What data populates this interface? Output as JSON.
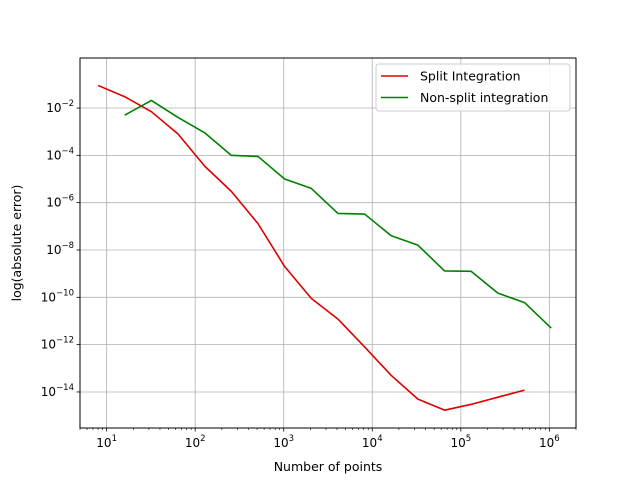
{
  "chart_data": {
    "type": "line",
    "xlabel": "Number of points",
    "ylabel": "log(absolute error)",
    "xscale": "log",
    "yscale": "log",
    "xlim": [
      5,
      2000000
    ],
    "ylim": [
      3e-16,
      1.3
    ],
    "grid": true,
    "legend_position": "top-right",
    "x_ticks": [
      {
        "value": 10,
        "base": "10",
        "exp": "1"
      },
      {
        "value": 100,
        "base": "10",
        "exp": "2"
      },
      {
        "value": 1000,
        "base": "10",
        "exp": "3"
      },
      {
        "value": 10000,
        "base": "10",
        "exp": "4"
      },
      {
        "value": 100000,
        "base": "10",
        "exp": "5"
      },
      {
        "value": 1000000,
        "base": "10",
        "exp": "6"
      }
    ],
    "y_ticks": [
      {
        "value": 1e-14,
        "base": "10",
        "exp": "−14"
      },
      {
        "value": 1e-12,
        "base": "10",
        "exp": "−12"
      },
      {
        "value": 1e-10,
        "base": "10",
        "exp": "−10"
      },
      {
        "value": 1e-08,
        "base": "10",
        "exp": "−8"
      },
      {
        "value": 1e-06,
        "base": "10",
        "exp": "−6"
      },
      {
        "value": 0.0001,
        "base": "10",
        "exp": "−4"
      },
      {
        "value": 0.01,
        "base": "10",
        "exp": "−2"
      }
    ],
    "series": [
      {
        "name": "Split Integration",
        "color": "#dd0000",
        "x": [
          8,
          16,
          32,
          64,
          128,
          256,
          512,
          1024,
          2048,
          4096,
          8192,
          16384,
          32768,
          65536,
          131072,
          262144,
          524288
        ],
        "y": [
          0.09,
          0.03,
          0.007,
          0.0008,
          3.5e-05,
          3e-06,
          1.3e-07,
          2e-09,
          9e-11,
          1.2e-11,
          8e-13,
          5e-14,
          5e-15,
          1.7e-15,
          3e-15,
          6e-15,
          1.2e-14
        ]
      },
      {
        "name": "Non-split integration",
        "color": "#008000",
        "x": [
          16,
          32,
          64,
          128,
          256,
          512,
          1024,
          2048,
          4096,
          8192,
          16384,
          32768,
          65536,
          131072,
          262144,
          524288,
          1048576
        ],
        "y": [
          0.005,
          0.021,
          0.004,
          0.0009,
          0.0001,
          9e-05,
          1e-05,
          4e-06,
          3.5e-07,
          3.3e-07,
          4e-08,
          1.6e-08,
          1.3e-09,
          1.25e-09,
          1.5e-10,
          6e-11,
          5e-12
        ]
      }
    ]
  }
}
